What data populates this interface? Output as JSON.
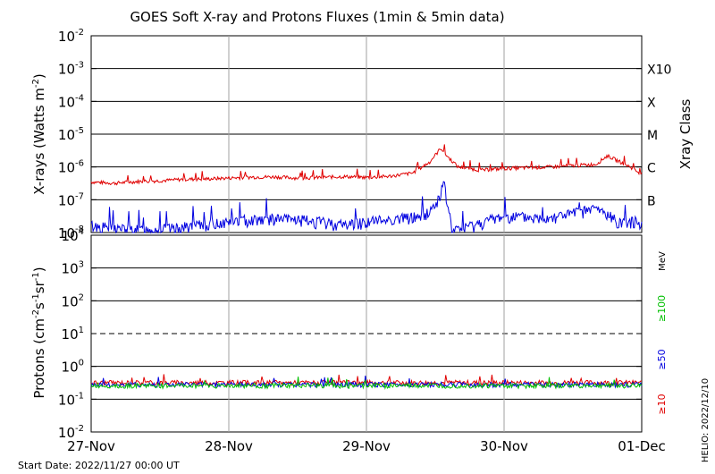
{
  "title": "GOES Soft X-ray and Protons Fluxes   (1min & 5min data)",
  "start_date": "Start Date: 2022/11/27 00:00 UT",
  "helio_stamp": "HELIO: 2022/12/10",
  "colors": {
    "xray_long": "#e00000",
    "xray_short": "#0000e0",
    "proton_10": "#e00000",
    "proton_50": "#0000e0",
    "proton_100": "#00c000",
    "grid": "#a0a0a0",
    "axis": "#000000"
  },
  "chart_data": [
    {
      "type": "line",
      "panel": "xray",
      "ylabel_main": "X-rays (Watts m",
      "ylabel_exp": "-2",
      "ylabel_end": ")",
      "ylabel_right": "Xray Class",
      "yscale": "log",
      "ylim": [
        1e-08,
        0.01
      ],
      "yticks": [
        {
          "base": "10",
          "exp": "-2",
          "value": 0.01
        },
        {
          "base": "10",
          "exp": "-3",
          "value": 0.001
        },
        {
          "base": "10",
          "exp": "-4",
          "value": 0.0001
        },
        {
          "base": "10",
          "exp": "-5",
          "value": 1e-05
        },
        {
          "base": "10",
          "exp": "-6",
          "value": 1e-06
        },
        {
          "base": "10",
          "exp": "-7",
          "value": 1e-07
        },
        {
          "base": "10",
          "exp": "-8",
          "value": 1e-08
        }
      ],
      "class_labels": [
        {
          "label": "X10",
          "value": 0.001
        },
        {
          "label": "X",
          "value": 0.0001
        },
        {
          "label": "M",
          "value": 1e-05
        },
        {
          "label": "C",
          "value": 1e-06
        },
        {
          "label": "B",
          "value": 1e-07
        }
      ],
      "series": [
        {
          "key": "long",
          "x": [
            "2022-11-27 00:00",
            "2022-11-27 04:00",
            "2022-11-27 08:00",
            "2022-11-27 12:00",
            "2022-11-27 16:00",
            "2022-11-27 20:00",
            "2022-11-28 00:00",
            "2022-11-28 04:00",
            "2022-11-28 08:00",
            "2022-11-28 12:00",
            "2022-11-28 16:00",
            "2022-11-28 20:00",
            "2022-11-29 00:00",
            "2022-11-29 04:00",
            "2022-11-29 08:00",
            "2022-11-29 11:00",
            "2022-11-29 13:00",
            "2022-11-29 14:00",
            "2022-11-29 16:00",
            "2022-11-29 20:00",
            "2022-11-30 00:00",
            "2022-11-30 04:00",
            "2022-11-30 08:00",
            "2022-11-30 12:00",
            "2022-11-30 16:00",
            "2022-11-30 18:00",
            "2022-11-30 20:00",
            "2022-11-30 22:00",
            "2022-12-01 00:00"
          ],
          "y": [
            3.5e-07,
            3.2e-07,
            3.6e-07,
            3.8e-07,
            4.2e-07,
            4.3e-07,
            4.6e-07,
            4.9e-07,
            5e-07,
            4.6e-07,
            4.8e-07,
            5.1e-07,
            4.8e-07,
            5.2e-07,
            6.5e-07,
            1.4e-06,
            3.8e-06,
            2.2e-06,
            1e-06,
            8e-07,
            9e-07,
            9.5e-07,
            1e-06,
            1.1e-06,
            1.2e-06,
            2.2e-06,
            1.5e-06,
            1e-06,
            6e-07
          ]
        },
        {
          "key": "short",
          "x": [
            "2022-11-27 00:00",
            "2022-11-27 08:00",
            "2022-11-27 14:00",
            "2022-11-28 00:00",
            "2022-11-28 06:00",
            "2022-11-28 12:00",
            "2022-11-28 20:00",
            "2022-11-29 00:00",
            "2022-11-29 06:00",
            "2022-11-29 10:00",
            "2022-11-29 12:00",
            "2022-11-29 13:30",
            "2022-11-29 15:00",
            "2022-11-30 00:00",
            "2022-11-30 06:00",
            "2022-11-30 12:00",
            "2022-11-30 16:00",
            "2022-11-30 20:00",
            "2022-12-01 00:00"
          ],
          "y": [
            1.5e-08,
            1.1e-08,
            1.2e-08,
            2e-08,
            2.5e-08,
            2.3e-08,
            1.6e-08,
            2e-08,
            2.5e-08,
            3e-08,
            6e-08,
            2.8e-07,
            1e-08,
            3e-08,
            2.5e-08,
            3.5e-08,
            5e-08,
            2e-08,
            2e-08
          ]
        }
      ]
    },
    {
      "type": "line",
      "panel": "protons",
      "ylabel_main": "Protons (cm",
      "ylabel_exp1": "-2",
      "ylabel_mid": "s",
      "ylabel_exp2": "-1",
      "ylabel_mid2": "sr",
      "ylabel_exp3": "-1",
      "ylabel_end": ")",
      "yscale": "log",
      "ylim": [
        0.01,
        10000
      ],
      "yticks": [
        {
          "base": "10",
          "exp": "4",
          "value": 10000
        },
        {
          "base": "10",
          "exp": "3",
          "value": 1000
        },
        {
          "base": "10",
          "exp": "2",
          "value": 100
        },
        {
          "base": "10",
          "exp": "1",
          "value": 10
        },
        {
          "base": "10",
          "exp": "0",
          "value": 1
        },
        {
          "base": "10",
          "exp": "-1",
          "value": 0.1
        },
        {
          "base": "10",
          "exp": "-2",
          "value": 0.01
        }
      ],
      "threshold_value": 10,
      "unit_label": "MeV",
      "energy_labels": [
        {
          "label": "≥100",
          "key": "p100"
        },
        {
          "label": "≥50",
          "key": "p50"
        },
        {
          "label": "≥10",
          "key": "p10"
        }
      ],
      "series": [
        {
          "key": "p10",
          "level": 0.32
        },
        {
          "key": "p50",
          "level": 0.28
        },
        {
          "key": "p100",
          "level": 0.26
        }
      ]
    }
  ],
  "x_axis": {
    "range": [
      "2022-11-27 00:00",
      "2022-12-01 00:00"
    ],
    "ticks": [
      "27-Nov",
      "28-Nov",
      "29-Nov",
      "30-Nov",
      "01-Dec"
    ]
  }
}
